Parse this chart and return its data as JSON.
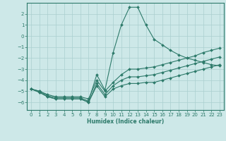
{
  "xlabel": "Humidex (Indice chaleur)",
  "ylabel": "",
  "xlim": [
    -0.5,
    23.5
  ],
  "ylim": [
    -6.7,
    3.0
  ],
  "xticks": [
    0,
    1,
    2,
    3,
    4,
    5,
    6,
    7,
    8,
    9,
    10,
    11,
    12,
    13,
    14,
    15,
    16,
    17,
    18,
    19,
    20,
    21,
    22,
    23
  ],
  "yticks": [
    -6,
    -5,
    -4,
    -3,
    -2,
    -1,
    0,
    1,
    2
  ],
  "background_color": "#cde8e8",
  "grid_color": "#aacfcf",
  "line_color": "#2d7a6a",
  "lines": [
    {
      "x": [
        0,
        1,
        2,
        3,
        4,
        5,
        6,
        7,
        8,
        9,
        10,
        11,
        12,
        13,
        14,
        15,
        16,
        17,
        18,
        19,
        20,
        21,
        22,
        23
      ],
      "y": [
        -4.8,
        -5.0,
        -5.4,
        -5.6,
        -5.6,
        -5.6,
        -5.6,
        -5.9,
        -3.5,
        -4.9,
        -1.5,
        1.0,
        2.6,
        2.6,
        1.0,
        -0.3,
        -0.8,
        -1.3,
        -1.7,
        -2.0,
        -2.2,
        -2.4,
        -2.6,
        -2.7
      ]
    },
    {
      "x": [
        0,
        1,
        2,
        3,
        4,
        5,
        6,
        7,
        8,
        9,
        10,
        11,
        12,
        13,
        14,
        15,
        16,
        17,
        18,
        19,
        20,
        21,
        22,
        23
      ],
      "y": [
        -4.8,
        -5.0,
        -5.3,
        -5.5,
        -5.5,
        -5.5,
        -5.5,
        -5.7,
        -4.0,
        -5.0,
        -4.2,
        -3.5,
        -3.0,
        -3.0,
        -2.9,
        -2.8,
        -2.6,
        -2.4,
        -2.2,
        -2.0,
        -1.8,
        -1.5,
        -1.3,
        -1.1
      ]
    },
    {
      "x": [
        0,
        1,
        2,
        3,
        4,
        5,
        6,
        7,
        8,
        9,
        10,
        11,
        12,
        13,
        14,
        15,
        16,
        17,
        18,
        19,
        20,
        21,
        22,
        23
      ],
      "y": [
        -4.8,
        -5.1,
        -5.5,
        -5.7,
        -5.7,
        -5.7,
        -5.7,
        -6.0,
        -4.3,
        -5.3,
        -4.5,
        -4.0,
        -3.7,
        -3.7,
        -3.6,
        -3.5,
        -3.3,
        -3.1,
        -2.9,
        -2.7,
        -2.5,
        -2.3,
        -2.1,
        -1.9
      ]
    },
    {
      "x": [
        0,
        1,
        2,
        3,
        4,
        5,
        6,
        7,
        8,
        9,
        10,
        11,
        12,
        13,
        14,
        15,
        16,
        17,
        18,
        19,
        20,
        21,
        22,
        23
      ],
      "y": [
        -4.8,
        -5.1,
        -5.5,
        -5.7,
        -5.7,
        -5.7,
        -5.7,
        -6.0,
        -4.5,
        -5.5,
        -4.8,
        -4.5,
        -4.3,
        -4.3,
        -4.2,
        -4.2,
        -4.0,
        -3.8,
        -3.6,
        -3.4,
        -3.2,
        -3.0,
        -2.8,
        -2.6
      ]
    }
  ]
}
